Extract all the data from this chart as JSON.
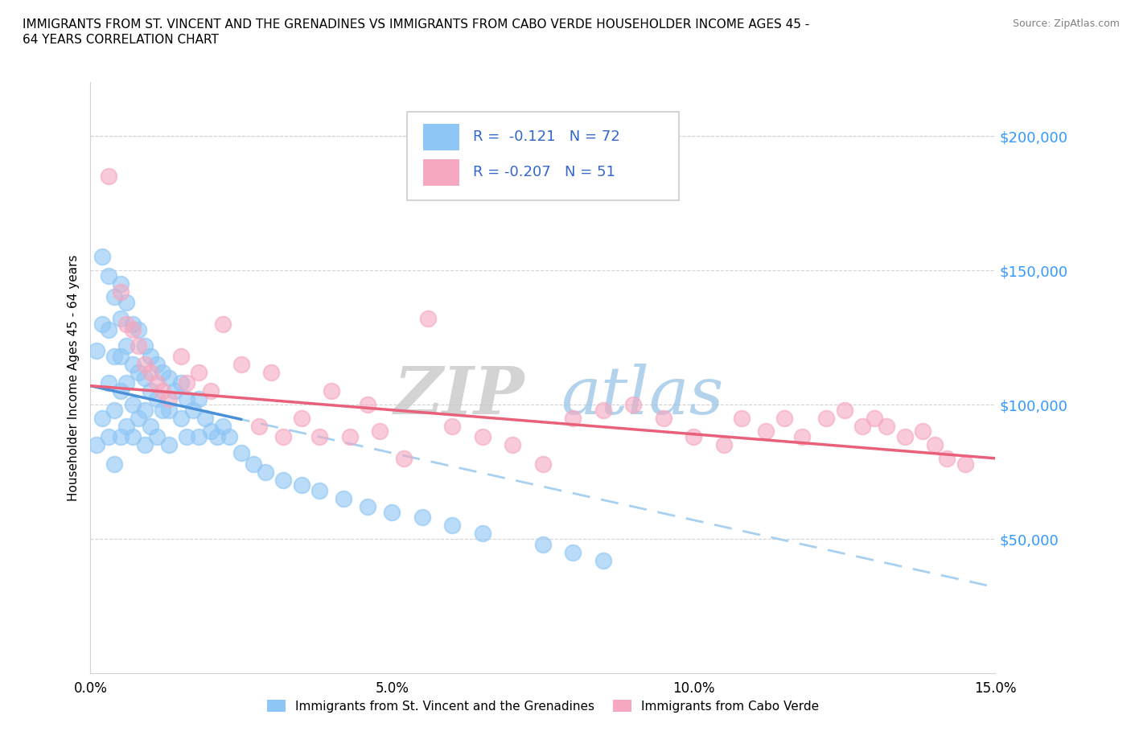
{
  "title_line1": "IMMIGRANTS FROM ST. VINCENT AND THE GRENADINES VS IMMIGRANTS FROM CABO VERDE HOUSEHOLDER INCOME AGES 45 -",
  "title_line2": "64 YEARS CORRELATION CHART",
  "source_text": "Source: ZipAtlas.com",
  "ylabel": "Householder Income Ages 45 - 64 years",
  "xlim": [
    0.0,
    0.15
  ],
  "ylim": [
    0,
    220000
  ],
  "xtick_labels": [
    "0.0%",
    "5.0%",
    "10.0%",
    "15.0%"
  ],
  "xtick_positions": [
    0.0,
    0.05,
    0.1,
    0.15
  ],
  "ytick_labels": [
    "$50,000",
    "$100,000",
    "$150,000",
    "$200,000"
  ],
  "ytick_positions": [
    50000,
    100000,
    150000,
    200000
  ],
  "color_sv": "#8ec6f5",
  "color_cv": "#f5a8c0",
  "line_color_sv_solid": "#4a90d9",
  "line_color_sv_dash": "#a8d0f0",
  "line_color_cv": "#e8607a",
  "R_sv": -0.121,
  "N_sv": 72,
  "R_cv": -0.207,
  "N_cv": 51,
  "watermark_zip": "ZIP",
  "watermark_atlas": "atlas",
  "legend_label_sv": "Immigrants from St. Vincent and the Grenadines",
  "legend_label_cv": "Immigrants from Cabo Verde",
  "sv_x": [
    0.001,
    0.001,
    0.002,
    0.002,
    0.002,
    0.003,
    0.003,
    0.003,
    0.003,
    0.004,
    0.004,
    0.004,
    0.004,
    0.005,
    0.005,
    0.005,
    0.005,
    0.005,
    0.006,
    0.006,
    0.006,
    0.006,
    0.007,
    0.007,
    0.007,
    0.007,
    0.008,
    0.008,
    0.008,
    0.009,
    0.009,
    0.009,
    0.009,
    0.01,
    0.01,
    0.01,
    0.011,
    0.011,
    0.011,
    0.012,
    0.012,
    0.013,
    0.013,
    0.013,
    0.014,
    0.015,
    0.015,
    0.016,
    0.016,
    0.017,
    0.018,
    0.018,
    0.019,
    0.02,
    0.021,
    0.022,
    0.023,
    0.025,
    0.027,
    0.029,
    0.032,
    0.035,
    0.038,
    0.042,
    0.046,
    0.05,
    0.055,
    0.06,
    0.065,
    0.075,
    0.08,
    0.085
  ],
  "sv_y": [
    120000,
    85000,
    155000,
    130000,
    95000,
    148000,
    128000,
    108000,
    88000,
    140000,
    118000,
    98000,
    78000,
    145000,
    132000,
    118000,
    105000,
    88000,
    138000,
    122000,
    108000,
    92000,
    130000,
    115000,
    100000,
    88000,
    128000,
    112000,
    95000,
    122000,
    110000,
    98000,
    85000,
    118000,
    105000,
    92000,
    115000,
    102000,
    88000,
    112000,
    98000,
    110000,
    98000,
    85000,
    105000,
    108000,
    95000,
    102000,
    88000,
    98000,
    102000,
    88000,
    95000,
    90000,
    88000,
    92000,
    88000,
    82000,
    78000,
    75000,
    72000,
    70000,
    68000,
    65000,
    62000,
    60000,
    58000,
    55000,
    52000,
    48000,
    45000,
    42000
  ],
  "cv_x": [
    0.003,
    0.005,
    0.006,
    0.007,
    0.008,
    0.009,
    0.01,
    0.011,
    0.012,
    0.013,
    0.015,
    0.016,
    0.018,
    0.02,
    0.022,
    0.025,
    0.028,
    0.03,
    0.032,
    0.035,
    0.038,
    0.04,
    0.043,
    0.046,
    0.048,
    0.052,
    0.056,
    0.06,
    0.065,
    0.07,
    0.075,
    0.08,
    0.085,
    0.09,
    0.095,
    0.1,
    0.105,
    0.108,
    0.112,
    0.115,
    0.118,
    0.122,
    0.125,
    0.128,
    0.13,
    0.132,
    0.135,
    0.138,
    0.14,
    0.142,
    0.145
  ],
  "cv_y": [
    185000,
    142000,
    130000,
    128000,
    122000,
    115000,
    112000,
    108000,
    105000,
    102000,
    118000,
    108000,
    112000,
    105000,
    130000,
    115000,
    92000,
    112000,
    88000,
    95000,
    88000,
    105000,
    88000,
    100000,
    90000,
    80000,
    132000,
    92000,
    88000,
    85000,
    78000,
    95000,
    98000,
    100000,
    95000,
    88000,
    85000,
    95000,
    90000,
    95000,
    88000,
    95000,
    98000,
    92000,
    95000,
    92000,
    88000,
    90000,
    85000,
    80000,
    78000
  ]
}
